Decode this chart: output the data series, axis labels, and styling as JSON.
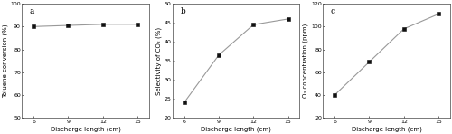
{
  "x": [
    6,
    9,
    12,
    15
  ],
  "panel_a": {
    "y": [
      90.0,
      90.5,
      91.0,
      91.0
    ],
    "ylabel": "Toluene conversion (%)",
    "ylim": [
      50,
      100
    ],
    "yticks": [
      50,
      60,
      70,
      80,
      90,
      100
    ],
    "label": "a"
  },
  "panel_b": {
    "y": [
      24.0,
      36.5,
      44.5,
      46.0
    ],
    "ylabel": "Selectivity of CO₂ (%)",
    "ylim": [
      20,
      50
    ],
    "yticks": [
      20,
      25,
      30,
      35,
      40,
      45,
      50
    ],
    "label": "b"
  },
  "panel_c": {
    "y": [
      40,
      69,
      98,
      111
    ],
    "ylabel": "O₃ concentration (ppm)",
    "ylim": [
      20,
      120
    ],
    "yticks": [
      20,
      40,
      60,
      80,
      100,
      120
    ],
    "label": "c"
  },
  "xlabel": "Discharge length (cm)",
  "xticks": [
    6,
    9,
    12,
    15
  ],
  "xlim": [
    5,
    16
  ],
  "line_color": "#999999",
  "marker": "s",
  "marker_color": "#111111",
  "marker_size": 2.5,
  "linewidth": 0.8,
  "background_color": "#ffffff",
  "label_fontsize": 5.0,
  "tick_fontsize": 4.5,
  "panel_label_fontsize": 6.5
}
